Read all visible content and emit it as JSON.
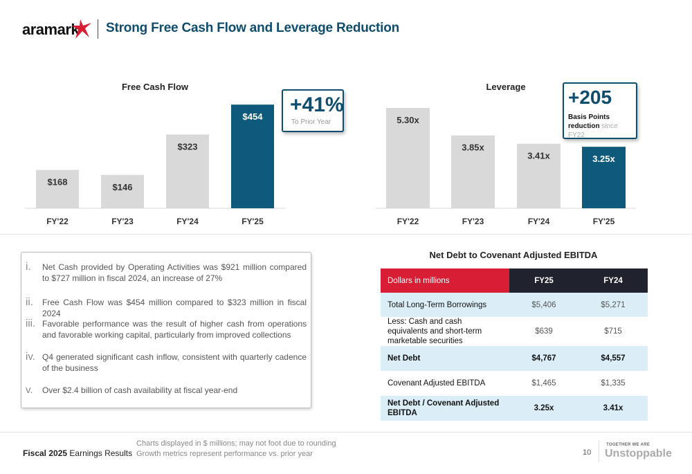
{
  "header": {
    "logo_text": "aramark",
    "title": "Strong Free Cash Flow and Leverage Reduction"
  },
  "colors": {
    "accent": "#0e4d6e",
    "brand_red": "#c8102e",
    "bar_grey": "#d9d9d9"
  },
  "chart_data": [
    {
      "type": "bar",
      "title": "Free Cash Flow",
      "categories": [
        "FY'22",
        "FY'23",
        "FY'24",
        "FY'25"
      ],
      "values": [
        168,
        146,
        323,
        454
      ],
      "value_labels": [
        "$168",
        "$146",
        "$323",
        "$454"
      ],
      "highlight_index": 3,
      "ylim": [
        0,
        500
      ]
    },
    {
      "type": "bar",
      "title": "Leverage",
      "categories": [
        "FY'22",
        "FY'23",
        "FY'24",
        "FY'25"
      ],
      "values": [
        5.3,
        3.85,
        3.41,
        3.25
      ],
      "value_labels": [
        "5.30x",
        "3.85x",
        "3.41x",
        "3.25x"
      ],
      "highlight_index": 3,
      "ylim": [
        0,
        5.85
      ]
    }
  ],
  "callouts": {
    "fcf": {
      "big": "+41%",
      "small": "To Prior Year"
    },
    "leverage": {
      "big": "+205",
      "small_bold": "Basis Points reduction",
      "small_grey": " since FY22"
    }
  },
  "bullets": [
    {
      "num": "i.",
      "text": "Net Cash provided by Operating Activities was $921 million compared to $727 million in fiscal 2024, an increase of 27%"
    },
    {
      "num": "ii.",
      "text": "Free Cash Flow was $454 million compared to $323 million in fiscal 2024"
    },
    {
      "num": "iii.",
      "text": "Favorable performance was the result of higher cash from operations and favorable working capital, particularly from improved collections"
    },
    {
      "num": "iv.",
      "text": "Q4 generated significant cash inflow, consistent with quarterly cadence of the business"
    },
    {
      "num": "v.",
      "text": "Over $2.4 billion of cash availability at fiscal year-end"
    }
  ],
  "table": {
    "title": "Net Debt to Covenant Adjusted EBITDA",
    "header": [
      "Dollars in millions",
      "FY25",
      "FY24"
    ],
    "rows": [
      {
        "label": "Total Long-Term Borrowings",
        "fy25": "$5,406",
        "fy24": "$5,271"
      },
      {
        "label": "Less: Cash and cash equivalents and short-term marketable securities",
        "fy25": "$639",
        "fy24": "$715"
      },
      {
        "label": "Net Debt",
        "fy25": "$4,767",
        "fy24": "$4,557"
      },
      {
        "label": "Covenant Adjusted EBITDA",
        "fy25": "$1,465",
        "fy24": "$1,335"
      },
      {
        "label": "Net Debt / Covenant Adjusted EBITDA",
        "fy25": "3.25x",
        "fy24": "3.41x"
      }
    ]
  },
  "footer": {
    "left_bold": "Fiscal 2025",
    "left_rest": " Earnings Results",
    "note_1": "Charts displayed in $ millions; may not foot due to rounding",
    "note_2": "Growth metrics represent performance vs. prior year",
    "page_number": "10",
    "tagline_small": "TOGETHER WE ARE",
    "tagline_big": "Unstoppable"
  }
}
